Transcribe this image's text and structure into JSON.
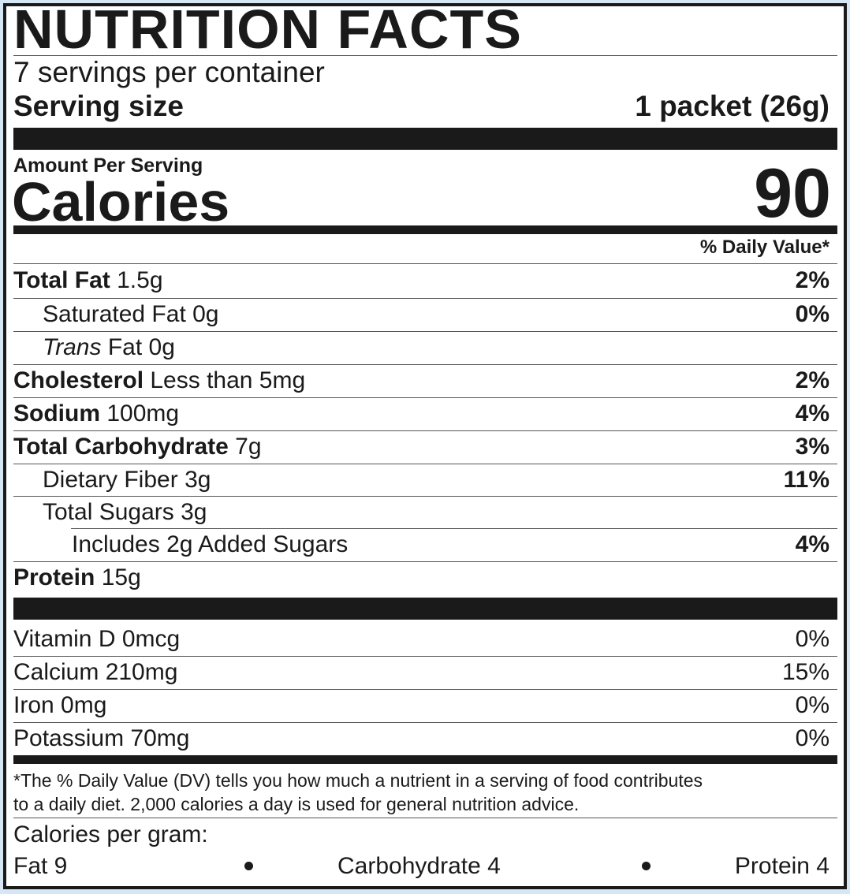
{
  "label": {
    "title": "NUTRITION FACTS",
    "servings_per_container": "7 servings per container",
    "serving_size_label": "Serving size",
    "serving_size_value": "1 packet (26g)",
    "amount_per_serving": "Amount Per Serving",
    "calories_label": "Calories",
    "calories_value": "90",
    "daily_value_header": "% Daily Value*",
    "nutrients": [
      {
        "name": "Total Fat",
        "amount": "1.5g",
        "dv": "2%",
        "bold": true,
        "indent": 0
      },
      {
        "name": "Saturated Fat",
        "amount": "0g",
        "dv": "0%",
        "bold": false,
        "indent": 1
      },
      {
        "name": "Trans",
        "name_suffix": "Fat",
        "amount": "0g",
        "dv": "",
        "bold": false,
        "italic": true,
        "indent": 1
      },
      {
        "name": "Cholesterol",
        "amount": "Less than 5mg",
        "dv": "2%",
        "bold": true,
        "indent": 0
      },
      {
        "name": "Sodium",
        "amount": "100mg",
        "dv": "4%",
        "bold": true,
        "indent": 0
      },
      {
        "name": "Total Carbohydrate",
        "amount": "7g",
        "dv": "3%",
        "bold": true,
        "indent": 0
      },
      {
        "name": "Dietary Fiber",
        "amount": "3g",
        "dv": "11%",
        "bold": false,
        "indent": 1
      },
      {
        "name": "Total Sugars",
        "amount": "3g",
        "dv": "",
        "bold": false,
        "indent": 1
      },
      {
        "name": "Includes 2g Added Sugars",
        "amount": "",
        "dv": "4%",
        "bold": false,
        "indent": 2
      },
      {
        "name": "Protein",
        "amount": "15g",
        "dv": "",
        "bold": true,
        "indent": 0
      }
    ],
    "vitamins": [
      {
        "name": "Vitamin D 0mcg",
        "dv": "0%"
      },
      {
        "name": "Calcium 210mg",
        "dv": "15%"
      },
      {
        "name": "Iron 0mg",
        "dv": "0%"
      },
      {
        "name": "Potassium 70mg",
        "dv": "0%"
      }
    ],
    "footnote_line1": "*The % Daily Value (DV) tells you how much a nutrient in a serving of food contributes",
    "footnote_line2": "to a daily diet. 2,000 calories a day is used for general nutrition advice.",
    "calories_per_gram_label": "Calories per gram:",
    "calories_per_gram": {
      "fat": "Fat 9",
      "carbohydrate": "Carbohydrate 4",
      "protein": "Protein 4"
    }
  },
  "colors": {
    "background": "#d6e6f4",
    "ink": "#1a1a1a"
  }
}
